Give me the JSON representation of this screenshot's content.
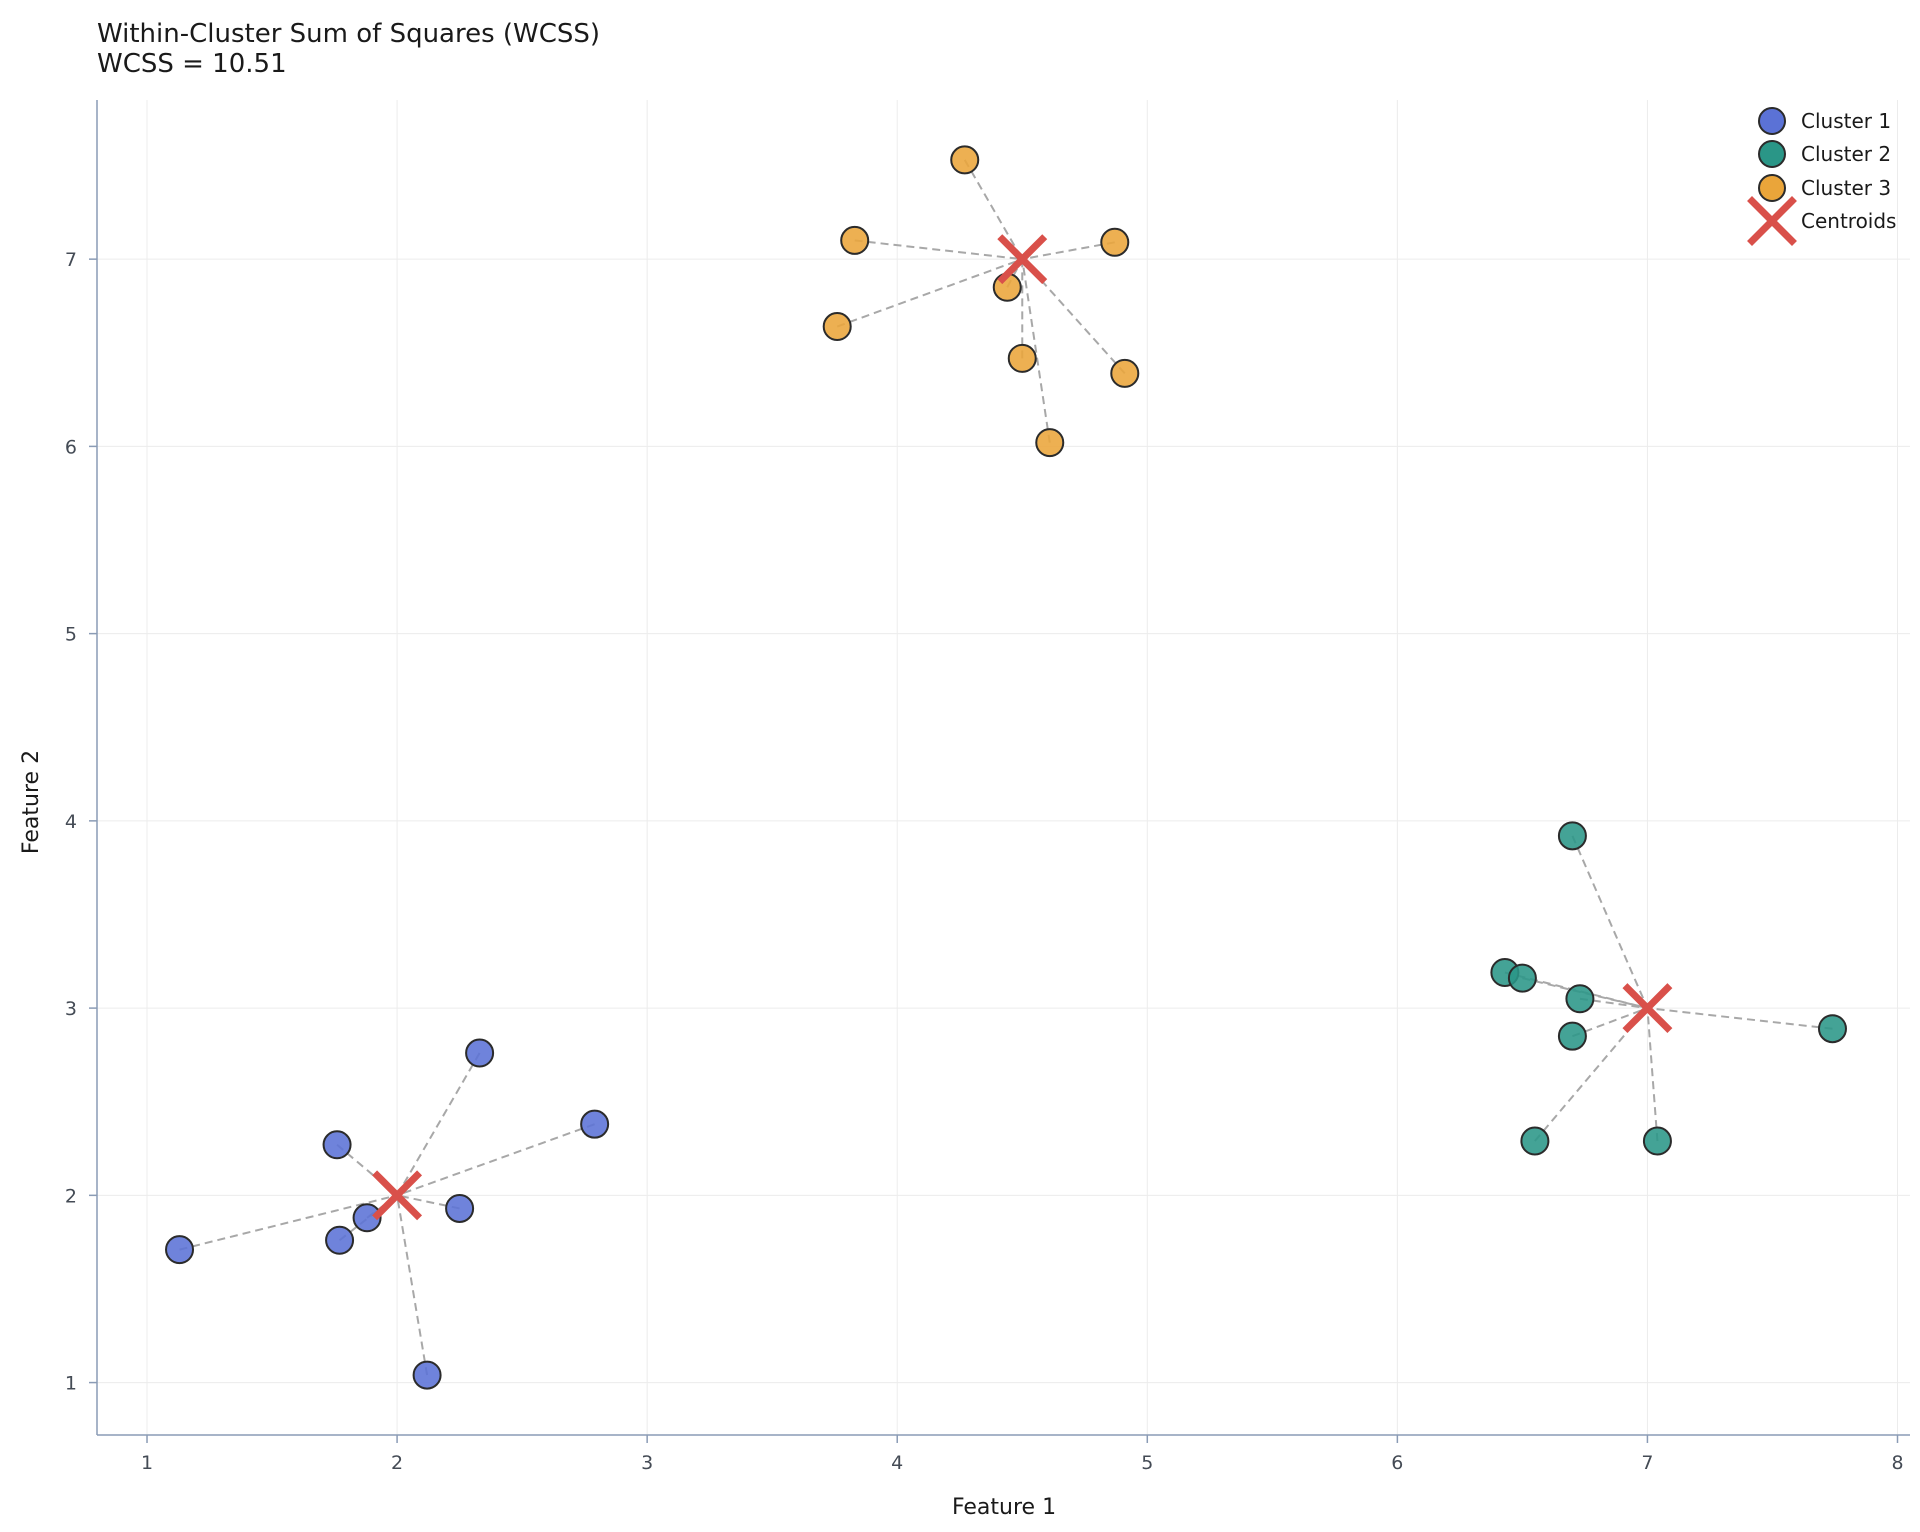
{
  "chart_data": {
    "type": "scatter",
    "title": "Within-Cluster Sum of Squares (WCSS)",
    "subtitle": "WCSS = 10.51",
    "xlabel": "Feature 1",
    "ylabel": "Feature 2",
    "xlim": [
      0.8,
      8.05
    ],
    "ylim": [
      0.72,
      7.85
    ],
    "xticks": [
      "1",
      "2",
      "3",
      "4",
      "5",
      "6",
      "7",
      "8"
    ],
    "yticks": [
      "1",
      "2",
      "3",
      "4",
      "5",
      "6",
      "7"
    ],
    "xtick_values": [
      1,
      2,
      3,
      4,
      5,
      6,
      7,
      8
    ],
    "ytick_values": [
      1,
      2,
      3,
      4,
      5,
      6,
      7
    ],
    "grid": true,
    "legend_position": "top-right",
    "series": [
      {
        "name": "Cluster 1",
        "color": "#5b72d6",
        "centroid": [
          2.0,
          2.0
        ],
        "points": [
          [
            1.13,
            1.71
          ],
          [
            1.76,
            2.27
          ],
          [
            1.77,
            1.76
          ],
          [
            1.88,
            1.88
          ],
          [
            2.12,
            1.04
          ],
          [
            2.25,
            1.93
          ],
          [
            2.33,
            2.76
          ],
          [
            2.79,
            2.38
          ]
        ]
      },
      {
        "name": "Cluster 2",
        "color": "#2a9687",
        "centroid": [
          7.0,
          3.0
        ],
        "points": [
          [
            6.43,
            3.19
          ],
          [
            6.5,
            3.16
          ],
          [
            6.55,
            2.29
          ],
          [
            6.7,
            3.92
          ],
          [
            6.7,
            2.85
          ],
          [
            6.73,
            3.05
          ],
          [
            7.04,
            2.29
          ],
          [
            7.74,
            2.89
          ]
        ]
      },
      {
        "name": "Cluster 3",
        "color": "#eaa53a",
        "centroid": [
          4.5,
          7.0
        ],
        "points": [
          [
            3.76,
            6.64
          ],
          [
            3.83,
            7.1
          ],
          [
            4.27,
            7.53
          ],
          [
            4.44,
            6.85
          ],
          [
            4.5,
            6.47
          ],
          [
            4.61,
            6.02
          ],
          [
            4.87,
            7.09
          ],
          [
            4.91,
            6.39
          ]
        ]
      }
    ],
    "centroids": {
      "name": "Centroids",
      "color": "#d9504a",
      "points": [
        [
          2.0,
          2.0
        ],
        [
          7.0,
          3.0
        ],
        [
          4.5,
          7.0
        ]
      ]
    }
  }
}
